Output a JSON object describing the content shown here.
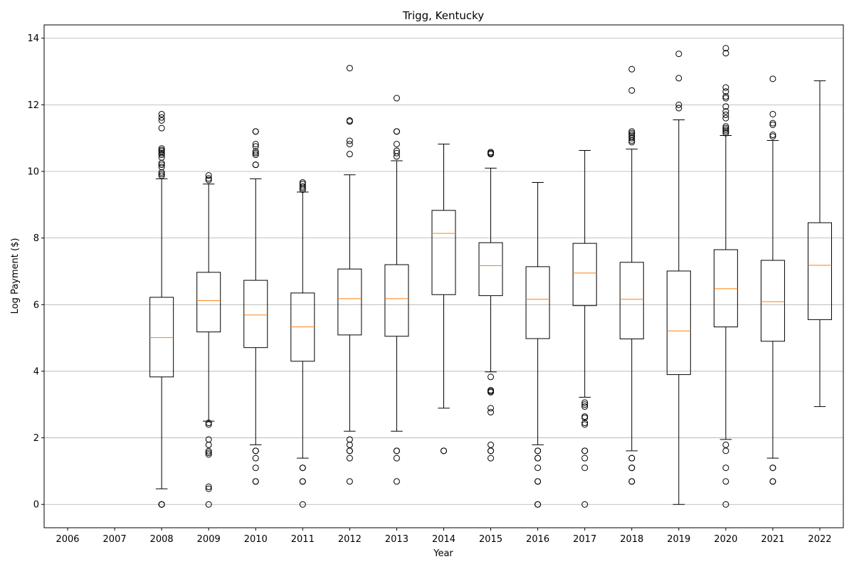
{
  "chart_data": {
    "type": "box",
    "title": "Trigg, Kentucky",
    "xlabel": "Year",
    "ylabel": "Log Payment ($)",
    "categories": [
      "2006",
      "2007",
      "2008",
      "2009",
      "2010",
      "2011",
      "2012",
      "2013",
      "2014",
      "2015",
      "2016",
      "2017",
      "2018",
      "2019",
      "2020",
      "2021",
      "2022"
    ],
    "ylim": [
      -0.7,
      14.4
    ],
    "yticks": [
      0,
      2,
      4,
      6,
      8,
      10,
      12,
      14
    ],
    "grid": "horizontal",
    "colors": {
      "box": "#000000",
      "median": "#ff7f0e",
      "grid": "#b0b0b0"
    },
    "boxes": [
      {
        "year": "2006",
        "empty": true
      },
      {
        "year": "2007",
        "empty": true
      },
      {
        "year": "2008",
        "whisker_low": 0.47,
        "q1": 3.83,
        "median": 5.01,
        "q3": 6.22,
        "whisker_high": 9.78,
        "outliers": [
          0,
          0,
          0,
          0,
          9.87,
          9.92,
          9.97,
          10.13,
          10.2,
          10.25,
          10.42,
          10.5,
          10.55,
          10.6,
          10.64,
          10.69,
          11.3,
          11.53,
          11.62,
          11.72
        ]
      },
      {
        "year": "2009",
        "whisker_low": 2.5,
        "q1": 5.18,
        "median": 6.12,
        "q3": 6.97,
        "whisker_high": 9.62,
        "outliers": [
          0,
          0.47,
          0.53,
          1.5,
          1.55,
          1.6,
          1.79,
          1.95,
          2.4,
          2.45,
          9.74,
          9.79,
          9.88
        ]
      },
      {
        "year": "2010",
        "whisker_low": 1.79,
        "q1": 4.71,
        "median": 5.69,
        "q3": 6.73,
        "whisker_high": 9.78,
        "outliers": [
          0.69,
          0.69,
          1.1,
          1.39,
          1.61,
          1.61,
          10.2,
          10.2,
          10.5,
          10.55,
          10.6,
          10.75,
          10.82,
          11.2,
          11.2
        ]
      },
      {
        "year": "2011",
        "whisker_low": 1.39,
        "q1": 4.3,
        "median": 5.33,
        "q3": 6.35,
        "whisker_high": 9.38,
        "outliers": [
          0,
          0.69,
          0.69,
          1.1,
          1.1,
          9.45,
          9.5,
          9.55,
          9.62,
          9.67
        ]
      },
      {
        "year": "2012",
        "whisker_low": 2.2,
        "q1": 5.09,
        "median": 6.18,
        "q3": 7.07,
        "whisker_high": 9.9,
        "outliers": [
          0.69,
          1.39,
          1.61,
          1.61,
          1.79,
          1.95,
          10.52,
          10.82,
          10.92,
          11.5,
          11.53,
          13.1
        ]
      },
      {
        "year": "2013",
        "whisker_low": 2.2,
        "q1": 5.05,
        "median": 6.18,
        "q3": 7.2,
        "whisker_high": 10.32,
        "outliers": [
          0.69,
          1.39,
          1.61,
          1.61,
          10.45,
          10.55,
          10.62,
          10.82,
          11.2,
          11.2,
          12.2
        ]
      },
      {
        "year": "2014",
        "whisker_low": 2.89,
        "q1": 6.3,
        "median": 8.14,
        "q3": 8.83,
        "whisker_high": 10.82,
        "outliers": [
          1.61,
          1.61
        ]
      },
      {
        "year": "2015",
        "whisker_low": 3.98,
        "q1": 6.27,
        "median": 7.17,
        "q3": 7.86,
        "whisker_high": 10.1,
        "outliers": [
          1.39,
          1.61,
          1.61,
          1.79,
          2.77,
          2.89,
          3.37,
          3.4,
          3.43,
          3.83,
          10.52,
          10.55,
          10.58
        ]
      },
      {
        "year": "2016",
        "whisker_low": 1.79,
        "q1": 4.98,
        "median": 6.16,
        "q3": 7.14,
        "whisker_high": 9.67,
        "outliers": [
          0,
          0,
          0.69,
          0.69,
          1.1,
          1.39,
          1.39,
          1.61,
          1.61
        ]
      },
      {
        "year": "2017",
        "whisker_low": 3.22,
        "q1": 5.97,
        "median": 6.95,
        "q3": 7.84,
        "whisker_high": 10.63,
        "outliers": [
          0,
          1.1,
          1.39,
          1.61,
          1.61,
          2.4,
          2.45,
          2.6,
          2.64,
          2.94,
          3.0,
          3.06
        ]
      },
      {
        "year": "2018",
        "whisker_low": 1.61,
        "q1": 4.97,
        "median": 6.16,
        "q3": 7.27,
        "whisker_high": 10.67,
        "outliers": [
          0.69,
          0.69,
          1.1,
          1.1,
          1.39,
          1.39,
          10.88,
          10.93,
          11.0,
          11.05,
          11.1,
          11.15,
          11.2,
          12.43,
          13.07
        ]
      },
      {
        "year": "2019",
        "whisker_low": 0,
        "q1": 3.9,
        "median": 5.21,
        "q3": 7.01,
        "whisker_high": 11.55,
        "outliers": [
          11.9,
          12.0,
          12.8,
          13.53
        ]
      },
      {
        "year": "2020",
        "whisker_low": 1.95,
        "q1": 5.33,
        "median": 6.48,
        "q3": 7.65,
        "whisker_high": 11.08,
        "outliers": [
          0,
          0.69,
          1.1,
          1.61,
          1.79,
          11.15,
          11.2,
          11.25,
          11.3,
          11.35,
          11.6,
          11.7,
          11.8,
          11.95,
          12.2,
          12.25,
          12.4,
          12.52,
          13.55,
          13.7
        ]
      },
      {
        "year": "2021",
        "whisker_low": 1.39,
        "q1": 4.9,
        "median": 6.09,
        "q3": 7.33,
        "whisker_high": 10.93,
        "outliers": [
          0.69,
          0.69,
          1.1,
          1.1,
          11.05,
          11.1,
          11.4,
          11.45,
          11.72,
          12.78
        ]
      },
      {
        "year": "2022",
        "whisker_low": 2.94,
        "q1": 5.55,
        "median": 7.18,
        "q3": 8.46,
        "whisker_high": 12.72,
        "outliers": []
      }
    ]
  }
}
